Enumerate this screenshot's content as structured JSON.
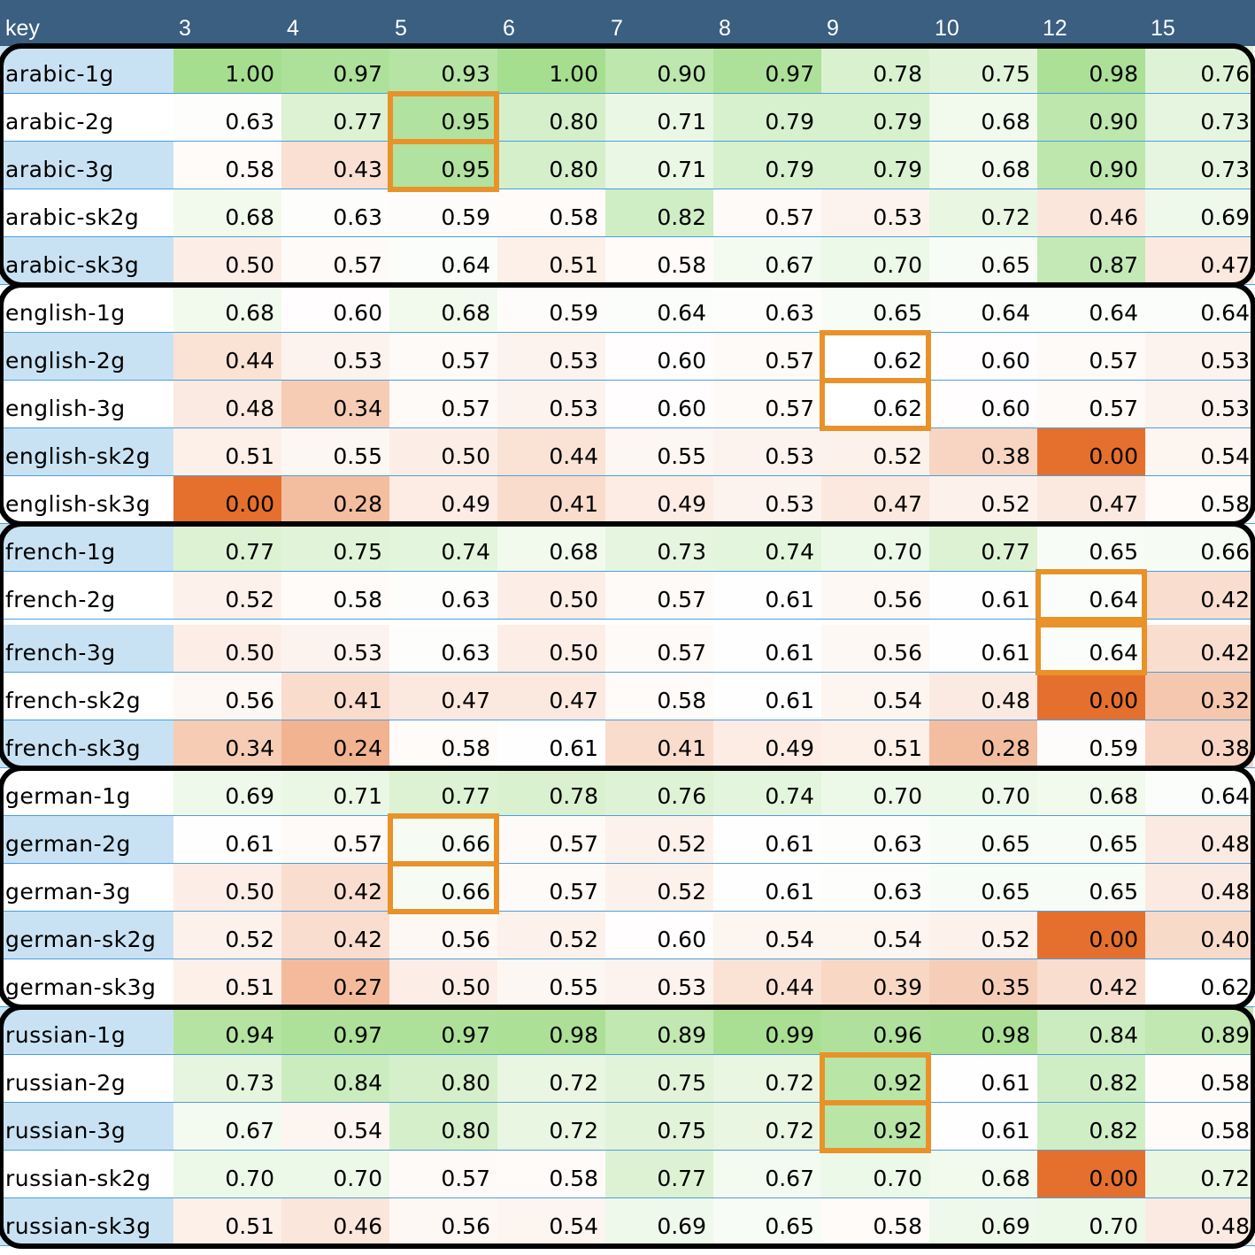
{
  "chart_data": {
    "type": "heatmap",
    "corner_label": "key",
    "columns": [
      "3",
      "4",
      "5",
      "6",
      "7",
      "8",
      "9",
      "10",
      "12",
      "15"
    ],
    "groups": [
      {
        "rows": [
          {
            "label": "arabic-1g",
            "values": [
              "1.00",
              "0.97",
              "0.93",
              "1.00",
              "0.90",
              "0.97",
              "0.78",
              "0.75",
              "0.98",
              "0.76"
            ]
          },
          {
            "label": "arabic-2g",
            "values": [
              "0.63",
              "0.77",
              "0.95",
              "0.80",
              "0.71",
              "0.79",
              "0.79",
              "0.68",
              "0.90",
              "0.73"
            ]
          },
          {
            "label": "arabic-3g",
            "values": [
              "0.58",
              "0.43",
              "0.95",
              "0.80",
              "0.71",
              "0.79",
              "0.79",
              "0.68",
              "0.90",
              "0.73"
            ]
          },
          {
            "label": "arabic-sk2g",
            "values": [
              "0.68",
              "0.63",
              "0.59",
              "0.58",
              "0.82",
              "0.57",
              "0.53",
              "0.72",
              "0.46",
              "0.69"
            ]
          },
          {
            "label": "arabic-sk3g",
            "values": [
              "0.50",
              "0.57",
              "0.64",
              "0.51",
              "0.58",
              "0.67",
              "0.70",
              "0.65",
              "0.87",
              "0.47"
            ]
          }
        ],
        "highlight_column": "5"
      },
      {
        "rows": [
          {
            "label": "english-1g",
            "values": [
              "0.68",
              "0.60",
              "0.68",
              "0.59",
              "0.64",
              "0.63",
              "0.65",
              "0.64",
              "0.64",
              "0.64"
            ]
          },
          {
            "label": "english-2g",
            "values": [
              "0.44",
              "0.53",
              "0.57",
              "0.53",
              "0.60",
              "0.57",
              "0.62",
              "0.60",
              "0.57",
              "0.53"
            ]
          },
          {
            "label": "english-3g",
            "values": [
              "0.48",
              "0.34",
              "0.57",
              "0.53",
              "0.60",
              "0.57",
              "0.62",
              "0.60",
              "0.57",
              "0.53"
            ]
          },
          {
            "label": "english-sk2g",
            "values": [
              "0.51",
              "0.55",
              "0.50",
              "0.44",
              "0.55",
              "0.53",
              "0.52",
              "0.38",
              "0.00",
              "0.54"
            ]
          },
          {
            "label": "english-sk3g",
            "values": [
              "0.00",
              "0.28",
              "0.49",
              "0.41",
              "0.49",
              "0.53",
              "0.47",
              "0.52",
              "0.47",
              "0.58"
            ]
          }
        ],
        "highlight_column": "9"
      },
      {
        "rows": [
          {
            "label": "french-1g",
            "values": [
              "0.77",
              "0.75",
              "0.74",
              "0.68",
              "0.73",
              "0.74",
              "0.70",
              "0.77",
              "0.65",
              "0.66"
            ]
          },
          {
            "label": "french-2g",
            "values": [
              "0.52",
              "0.58",
              "0.63",
              "0.50",
              "0.57",
              "0.61",
              "0.56",
              "0.61",
              "0.64",
              "0.42"
            ]
          },
          {
            "label": "french-3g",
            "values": [
              "0.50",
              "0.53",
              "0.63",
              "0.50",
              "0.57",
              "0.61",
              "0.56",
              "0.61",
              "0.64",
              "0.42"
            ]
          },
          {
            "label": "french-sk2g",
            "values": [
              "0.56",
              "0.41",
              "0.47",
              "0.47",
              "0.58",
              "0.61",
              "0.54",
              "0.48",
              "0.00",
              "0.32"
            ]
          },
          {
            "label": "french-sk3g",
            "values": [
              "0.34",
              "0.24",
              "0.58",
              "0.61",
              "0.41",
              "0.49",
              "0.51",
              "0.28",
              "0.59",
              "0.38"
            ]
          }
        ],
        "highlight_column": "12"
      },
      {
        "rows": [
          {
            "label": "german-1g",
            "values": [
              "0.69",
              "0.71",
              "0.77",
              "0.78",
              "0.76",
              "0.74",
              "0.70",
              "0.70",
              "0.68",
              "0.64"
            ]
          },
          {
            "label": "german-2g",
            "values": [
              "0.61",
              "0.57",
              "0.66",
              "0.57",
              "0.52",
              "0.61",
              "0.63",
              "0.65",
              "0.65",
              "0.48"
            ]
          },
          {
            "label": "german-3g",
            "values": [
              "0.50",
              "0.42",
              "0.66",
              "0.57",
              "0.52",
              "0.61",
              "0.63",
              "0.65",
              "0.65",
              "0.48"
            ]
          },
          {
            "label": "german-sk2g",
            "values": [
              "0.52",
              "0.42",
              "0.56",
              "0.52",
              "0.60",
              "0.54",
              "0.54",
              "0.52",
              "0.00",
              "0.40"
            ]
          },
          {
            "label": "german-sk3g",
            "values": [
              "0.51",
              "0.27",
              "0.50",
              "0.55",
              "0.53",
              "0.44",
              "0.39",
              "0.35",
              "0.42",
              "0.62"
            ]
          }
        ],
        "highlight_column": "5"
      },
      {
        "rows": [
          {
            "label": "russian-1g",
            "values": [
              "0.94",
              "0.97",
              "0.97",
              "0.98",
              "0.89",
              "0.99",
              "0.96",
              "0.98",
              "0.84",
              "0.89"
            ]
          },
          {
            "label": "russian-2g",
            "values": [
              "0.73",
              "0.84",
              "0.80",
              "0.72",
              "0.75",
              "0.72",
              "0.92",
              "0.61",
              "0.82",
              "0.58"
            ]
          },
          {
            "label": "russian-3g",
            "values": [
              "0.67",
              "0.54",
              "0.80",
              "0.72",
              "0.75",
              "0.72",
              "0.92",
              "0.61",
              "0.82",
              "0.58"
            ]
          },
          {
            "label": "russian-sk2g",
            "values": [
              "0.70",
              "0.70",
              "0.57",
              "0.58",
              "0.77",
              "0.67",
              "0.70",
              "0.68",
              "0.00",
              "0.72"
            ]
          },
          {
            "label": "russian-sk3g",
            "values": [
              "0.51",
              "0.46",
              "0.56",
              "0.54",
              "0.69",
              "0.65",
              "0.58",
              "0.69",
              "0.70",
              "0.48"
            ]
          }
        ],
        "highlight_column": "9"
      }
    ],
    "colors": {
      "header_bg": "#3a5f80",
      "header_text": "#ffffff",
      "label_bg_alt": "#c9e2f3",
      "label_bg": "#ffffff",
      "high": "#a6de90",
      "neutral": "#ffffff",
      "low": "#e5702e",
      "row_separator": "#4a9fe0",
      "group_border": "#000000",
      "highlight_border": "#e8922a"
    }
  }
}
